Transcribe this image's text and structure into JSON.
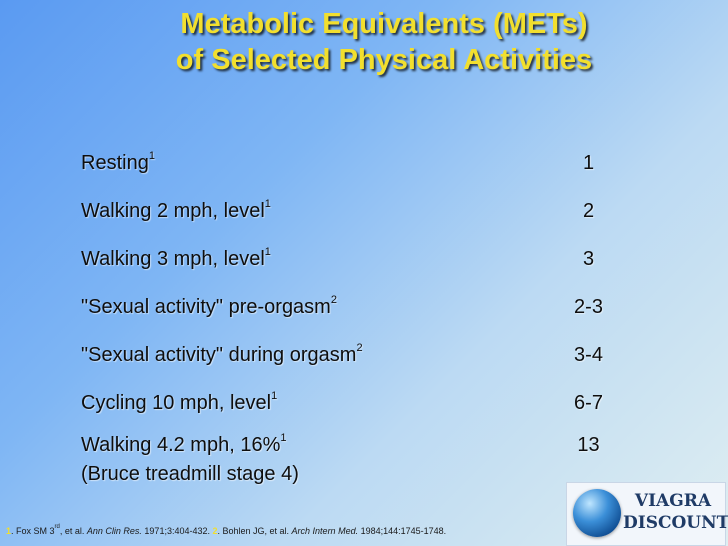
{
  "title": {
    "line1": "Metabolic Equivalents (METs)",
    "line2": "of Selected Physical Activities"
  },
  "activities": [
    {
      "label": "Resting",
      "sup": "1",
      "value": "1"
    },
    {
      "label": "Walking 2 mph, level",
      "sup": "1",
      "value": "2"
    },
    {
      "label": "Walking 3 mph, level",
      "sup": "1",
      "value": "3"
    },
    {
      "label": "\"Sexual activity\" pre-orgasm",
      "sup": "2",
      "value": "2-3"
    },
    {
      "label": "\"Sexual activity\" during orgasm",
      "sup": "2",
      "value": "3-4"
    },
    {
      "label": "Cycling 10 mph, level",
      "sup": "1",
      "value": "6-7"
    },
    {
      "label": "Walking 4.2 mph, 16%",
      "sup": "1",
      "value": "13",
      "sub": "(Bruce treadmill stage 4)"
    }
  ],
  "footnote": {
    "n1": "1",
    "ref1_pre": ". Fox SM 3",
    "ref1_sup": "rd",
    "ref1_mid": ", et al. ",
    "ref1_journal": "Ann Clin Res.",
    "ref1_post": " 1971;3:404-432.  ",
    "n2": "2",
    "ref2_pre": ". Bohlen JG, et al. ",
    "ref2_journal": "Arch Intern Med.",
    "ref2_post": " 1984;144:1745-1748."
  },
  "logo": {
    "line1": "VIAGRA",
    "line2": "DISCOUNT"
  }
}
